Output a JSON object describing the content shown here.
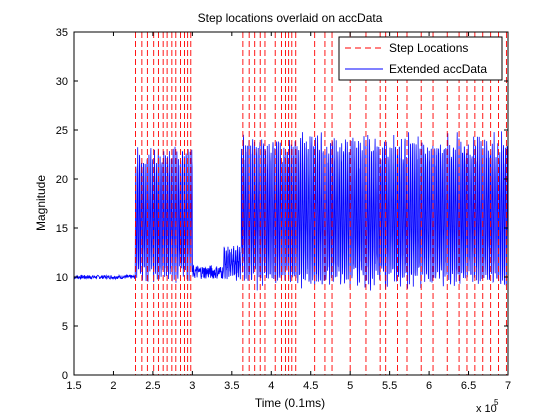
{
  "chart_data": {
    "type": "line",
    "title": "Step locations overlaid on accData",
    "xlabel": "Time (0.1ms)",
    "ylabel": "Magnitude",
    "x_exponent": "x 10",
    "x_exponent_power": "5",
    "xlim": [
      150000,
      700000
    ],
    "ylim": [
      0,
      35
    ],
    "xticks": [
      150000,
      200000,
      250000,
      300000,
      350000,
      400000,
      450000,
      500000,
      550000,
      600000,
      650000,
      700000
    ],
    "xtick_labels": [
      "1.5",
      "2",
      "2.5",
      "3",
      "3.5",
      "4",
      "4.5",
      "5",
      "5.5",
      "6",
      "6.5",
      "7"
    ],
    "yticks": [
      0,
      5,
      10,
      15,
      20,
      25,
      30,
      35
    ],
    "ytick_labels": [
      "0",
      "5",
      "10",
      "15",
      "20",
      "25",
      "30",
      "35"
    ],
    "legend_position": "top-right",
    "grid": false,
    "series": [
      {
        "name": "Step Locations",
        "style": "dashed",
        "color": "#ff0000",
        "step_x": [
          228000,
          236000,
          243000,
          251000,
          257000,
          263000,
          268000,
          274000,
          279000,
          285000,
          290000,
          294000,
          298000,
          364000,
          372000,
          379000,
          386000,
          392000,
          405000,
          413000,
          418000,
          422000,
          426000,
          431000,
          455000,
          468000,
          477000,
          500000,
          520000,
          538000,
          545000,
          560000,
          572000,
          590000,
          605000,
          623000,
          638000,
          648000,
          658000,
          668000,
          678000,
          688000,
          698000
        ]
      },
      {
        "name": "Extended accData",
        "style": "solid",
        "color": "#0000ff",
        "segments": [
          {
            "x": [
              150000,
              228000
            ],
            "baseline": 10.0,
            "amp_low": 0.2,
            "amp_high": 0.2
          },
          {
            "x": [
              228000,
              300000
            ],
            "baseline": 15.5,
            "amp_low": 6.0,
            "amp_high": 8.0
          },
          {
            "x": [
              300000,
              340000
            ],
            "baseline": 10.5,
            "amp_low": 0.6,
            "amp_high": 0.7
          },
          {
            "x": [
              340000,
              362000
            ],
            "baseline": 11.5,
            "amp_low": 1.5,
            "amp_high": 1.5
          },
          {
            "x": [
              362000,
              700000
            ],
            "baseline": 16.0,
            "amp_low": 7.0,
            "amp_high": 8.5
          }
        ]
      }
    ]
  }
}
